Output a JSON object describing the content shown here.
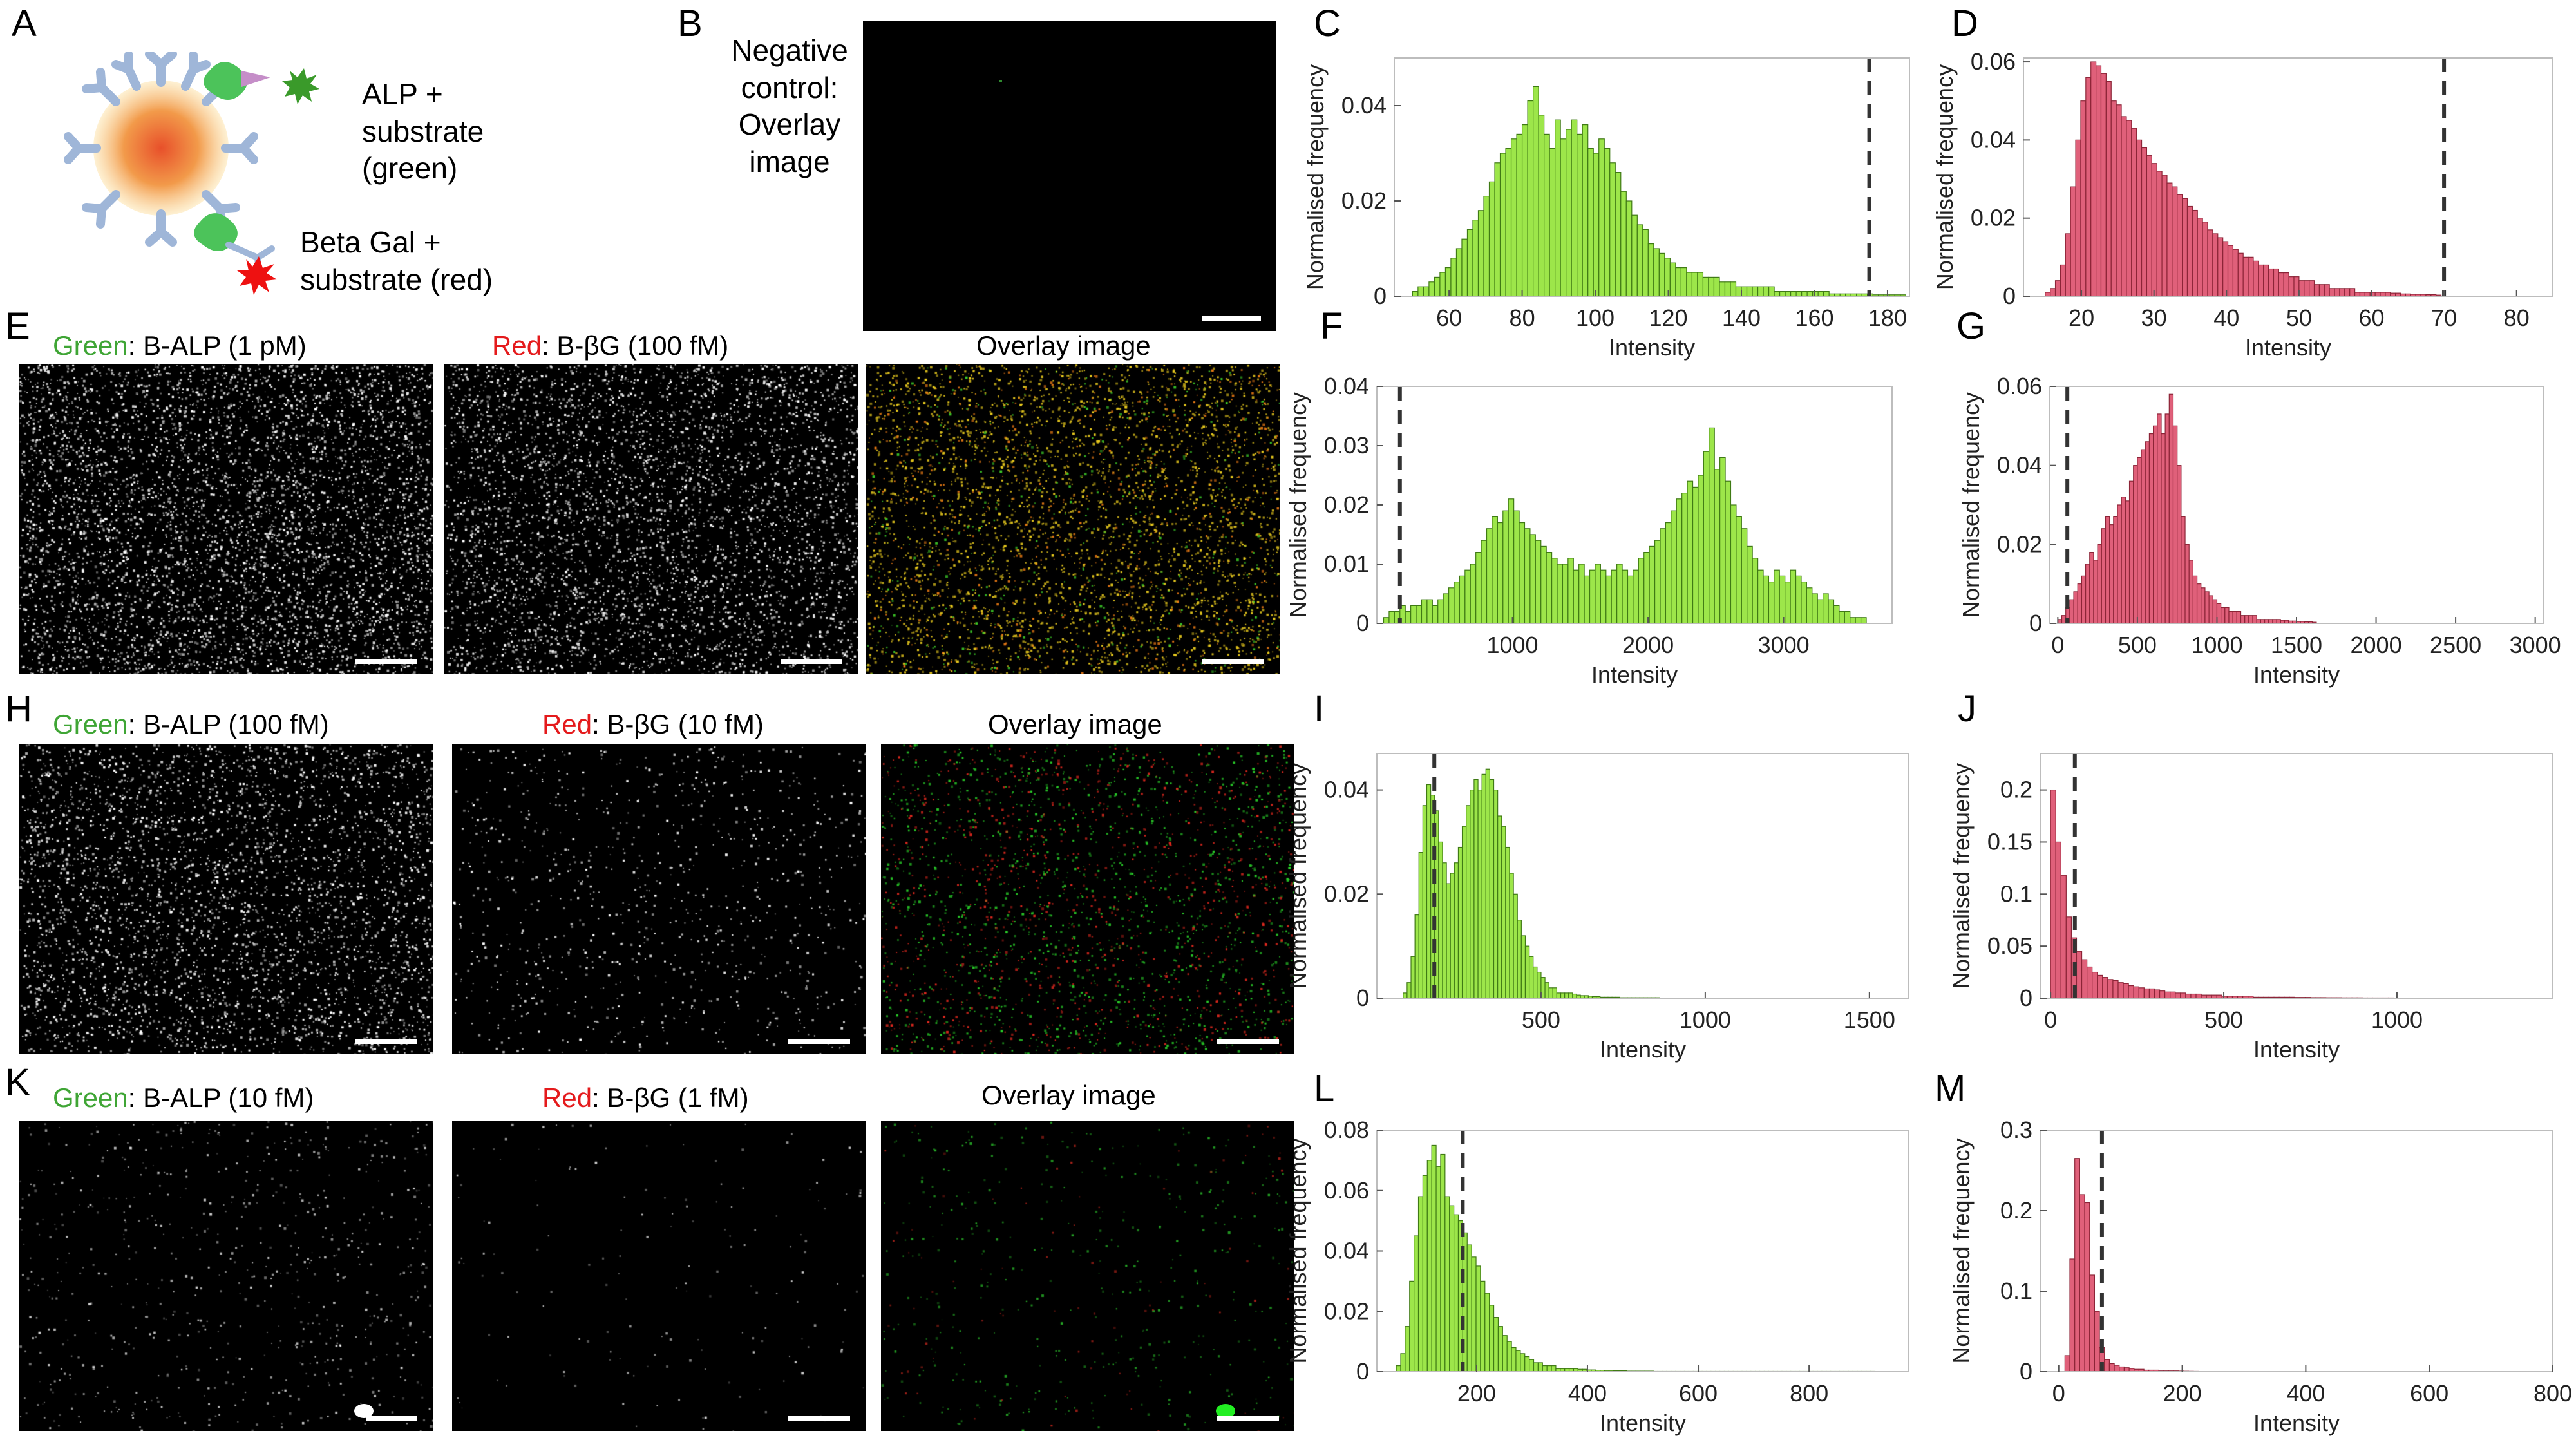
{
  "panel_labels": {
    "A": "A",
    "B": "B",
    "C": "C",
    "D": "D",
    "E": "E",
    "F": "F",
    "G": "G",
    "H": "H",
    "I": "I",
    "J": "J",
    "K": "K",
    "L": "L",
    "M": "M"
  },
  "colors": {
    "green_hist": "#9de64a",
    "green_edge": "#3f7a14",
    "red_hist": "#e0607a",
    "red_edge": "#8c2437",
    "label_green": "#3fa535",
    "label_red": "#e41a1c",
    "dashed": "#333333"
  },
  "panel_a": {
    "alp_text_line1": "ALP +",
    "alp_text_line2": "substrate",
    "alp_text_line3": "(green)",
    "bgal_text_line1": "Beta Gal +",
    "bgal_text_line2": "substrate (red)"
  },
  "panel_b": {
    "line1": "Negative",
    "line2": "control:",
    "line3": "Overlay",
    "line4": "image"
  },
  "row_e": {
    "green_word": "Green",
    "green_rest": ": B-ALP (1 pM)",
    "red_word": "Red",
    "red_rest": ": B-βG (100 fM)",
    "overlay": "Overlay image"
  },
  "row_h": {
    "green_word": "Green",
    "green_rest": ": B-ALP (100 fM)",
    "red_word": "Red",
    "red_rest": ": B-βG (10 fM)",
    "overlay": "Overlay image"
  },
  "row_k": {
    "green_word": "Green",
    "green_rest": ": B-ALP (10 fM)",
    "red_word": "Red",
    "red_rest": ": B-βG (1 fM)",
    "overlay": "Overlay image"
  },
  "chart_data": [
    {
      "id": "C",
      "type": "bar",
      "color": "green",
      "xlabel": "Intensity",
      "ylabel": "Normalised frequency",
      "xlim": [
        45,
        186
      ],
      "ylim": [
        0,
        0.05
      ],
      "xticks": [
        60,
        80,
        100,
        120,
        140,
        160,
        180
      ],
      "yticks": [
        0,
        0.02,
        0.04
      ],
      "threshold": 175,
      "bin_start": 50,
      "bin_width": 1.5,
      "values": [
        0.001,
        0.002,
        0.002,
        0.003,
        0.004,
        0.005,
        0.006,
        0.008,
        0.01,
        0.012,
        0.014,
        0.016,
        0.018,
        0.021,
        0.024,
        0.028,
        0.03,
        0.031,
        0.033,
        0.034,
        0.036,
        0.041,
        0.044,
        0.038,
        0.034,
        0.031,
        0.037,
        0.033,
        0.035,
        0.037,
        0.034,
        0.036,
        0.031,
        0.03,
        0.033,
        0.031,
        0.028,
        0.026,
        0.022,
        0.02,
        0.017,
        0.015,
        0.014,
        0.011,
        0.01,
        0.009,
        0.008,
        0.007,
        0.006,
        0.006,
        0.005,
        0.005,
        0.005,
        0.004,
        0.004,
        0.004,
        0.003,
        0.003,
        0.003,
        0.002,
        0.002,
        0.002,
        0.002,
        0.002,
        0.002,
        0.002,
        0.001,
        0.001,
        0.001,
        0.001,
        0.001,
        0.001,
        0.001,
        0.001,
        0.001,
        0.001,
        0.0005,
        0.0005,
        0.0005,
        0.0005,
        0.0005,
        0.0005,
        0.0005,
        0.0005,
        0.0003,
        0.0003,
        0.0003,
        0.0003,
        0.0003,
        0.0003
      ]
    },
    {
      "id": "D",
      "type": "bar",
      "color": "red",
      "xlabel": "Intensity",
      "ylabel": "Normalised frequency",
      "xlim": [
        12,
        85
      ],
      "ylim": [
        0,
        0.061
      ],
      "xticks": [
        20,
        30,
        40,
        50,
        60,
        70,
        80
      ],
      "yticks": [
        0,
        0.02,
        0.04,
        0.06
      ],
      "threshold": 70,
      "bin_start": 15,
      "bin_width": 0.7,
      "values": [
        0.001,
        0.002,
        0.004,
        0.008,
        0.016,
        0.028,
        0.04,
        0.05,
        0.056,
        0.06,
        0.059,
        0.057,
        0.055,
        0.05,
        0.049,
        0.046,
        0.045,
        0.043,
        0.04,
        0.038,
        0.036,
        0.034,
        0.032,
        0.031,
        0.029,
        0.028,
        0.026,
        0.025,
        0.023,
        0.022,
        0.02,
        0.019,
        0.017,
        0.016,
        0.015,
        0.014,
        0.013,
        0.012,
        0.011,
        0.01,
        0.01,
        0.009,
        0.008,
        0.008,
        0.007,
        0.007,
        0.006,
        0.006,
        0.005,
        0.005,
        0.004,
        0.004,
        0.004,
        0.003,
        0.003,
        0.003,
        0.002,
        0.002,
        0.002,
        0.002,
        0.002,
        0.001,
        0.001,
        0.001,
        0.001,
        0.001,
        0.001,
        0.001,
        0.0008,
        0.0008,
        0.0006,
        0.0006,
        0.0005,
        0.0005,
        0.0005,
        0.0004,
        0.0004,
        0.0003
      ]
    },
    {
      "id": "F",
      "type": "bar",
      "color": "green",
      "xlabel": "Intensity",
      "ylabel": "Normalised frequency",
      "xlim": [
        0,
        3800
      ],
      "ylim": [
        0,
        0.04
      ],
      "xticks": [
        1000,
        2000,
        3000
      ],
      "yticks": [
        0,
        0.01,
        0.02,
        0.03,
        0.04
      ],
      "threshold": 170,
      "bin_start": 50,
      "bin_width": 40,
      "values": [
        0.001,
        0.002,
        0.002,
        0.003,
        0.002,
        0.003,
        0.003,
        0.004,
        0.004,
        0.003,
        0.004,
        0.005,
        0.006,
        0.007,
        0.008,
        0.009,
        0.01,
        0.012,
        0.014,
        0.016,
        0.018,
        0.017,
        0.019,
        0.021,
        0.019,
        0.017,
        0.016,
        0.015,
        0.014,
        0.013,
        0.012,
        0.011,
        0.01,
        0.01,
        0.011,
        0.009,
        0.01,
        0.008,
        0.009,
        0.01,
        0.009,
        0.008,
        0.009,
        0.01,
        0.009,
        0.008,
        0.009,
        0.011,
        0.012,
        0.013,
        0.014,
        0.016,
        0.017,
        0.019,
        0.021,
        0.022,
        0.024,
        0.023,
        0.025,
        0.029,
        0.033,
        0.026,
        0.028,
        0.024,
        0.02,
        0.018,
        0.016,
        0.013,
        0.011,
        0.009,
        0.008,
        0.007,
        0.009,
        0.008,
        0.007,
        0.009,
        0.008,
        0.007,
        0.006,
        0.005,
        0.004,
        0.005,
        0.004,
        0.003,
        0.002,
        0.002,
        0.001,
        0.001,
        0.001
      ]
    },
    {
      "id": "G",
      "type": "bar",
      "color": "red",
      "xlabel": "Intensity",
      "ylabel": "Normalised frequency",
      "xlim": [
        -50,
        3050
      ],
      "ylim": [
        0,
        0.06
      ],
      "xticks": [
        0,
        500,
        1000,
        1500,
        2000,
        2500,
        3000
      ],
      "yticks": [
        0,
        0.02,
        0.04,
        0.06
      ],
      "threshold": 60,
      "bin_start": 0,
      "bin_width": 25,
      "values": [
        0.001,
        0.002,
        0.004,
        0.006,
        0.008,
        0.01,
        0.012,
        0.015,
        0.018,
        0.016,
        0.02,
        0.024,
        0.027,
        0.025,
        0.027,
        0.03,
        0.032,
        0.031,
        0.036,
        0.04,
        0.042,
        0.044,
        0.046,
        0.048,
        0.05,
        0.053,
        0.048,
        0.053,
        0.058,
        0.05,
        0.04,
        0.027,
        0.02,
        0.016,
        0.012,
        0.01,
        0.009,
        0.008,
        0.007,
        0.006,
        0.005,
        0.004,
        0.004,
        0.003,
        0.003,
        0.003,
        0.002,
        0.002,
        0.002,
        0.002,
        0.001,
        0.001,
        0.001,
        0.001,
        0.001,
        0.001,
        0.0008,
        0.0008,
        0.0006,
        0.0006,
        0.0005,
        0.0005,
        0.0004,
        0.0004,
        0.0003
      ]
    },
    {
      "id": "I",
      "type": "bar",
      "color": "green",
      "xlabel": "Intensity",
      "ylabel": "Normalised frequency",
      "xlim": [
        0,
        1620
      ],
      "ylim": [
        0,
        0.047
      ],
      "xticks": [
        500,
        1000,
        1500
      ],
      "yticks": [
        0,
        0.02,
        0.04
      ],
      "threshold": 175,
      "bin_start": 80,
      "bin_width": 12,
      "values": [
        0.001,
        0.003,
        0.008,
        0.016,
        0.028,
        0.037,
        0.041,
        0.039,
        0.036,
        0.03,
        0.026,
        0.022,
        0.024,
        0.026,
        0.029,
        0.033,
        0.037,
        0.04,
        0.042,
        0.04,
        0.043,
        0.044,
        0.042,
        0.04,
        0.035,
        0.033,
        0.029,
        0.024,
        0.02,
        0.015,
        0.012,
        0.01,
        0.008,
        0.006,
        0.005,
        0.004,
        0.003,
        0.002,
        0.002,
        0.001,
        0.001,
        0.001,
        0.001,
        0.0008,
        0.0006,
        0.0005,
        0.0005,
        0.0004,
        0.0003,
        0.0003,
        0.0002,
        0.0002,
        0.0002,
        0.0002,
        0.0002,
        0.0001,
        0.0001,
        0.0001,
        0.0001,
        0.0001,
        0.0001,
        0.0001,
        0.0001,
        0.0001,
        0.0001
      ]
    },
    {
      "id": "J",
      "type": "bar",
      "color": "red",
      "xlabel": "Intensity",
      "ylabel": "Normalised frequency",
      "xlim": [
        -30,
        1450
      ],
      "ylim": [
        0,
        0.235
      ],
      "xticks": [
        0,
        500,
        1000
      ],
      "yticks": [
        0,
        0.05,
        0.1,
        0.15,
        0.2
      ],
      "threshold": 70,
      "bin_start": 0,
      "bin_width": 15,
      "values": [
        0.2,
        0.15,
        0.118,
        0.078,
        0.058,
        0.045,
        0.037,
        0.03,
        0.025,
        0.022,
        0.02,
        0.018,
        0.017,
        0.015,
        0.014,
        0.012,
        0.011,
        0.01,
        0.009,
        0.009,
        0.008,
        0.007,
        0.006,
        0.006,
        0.005,
        0.005,
        0.004,
        0.004,
        0.004,
        0.003,
        0.003,
        0.003,
        0.003,
        0.002,
        0.002,
        0.002,
        0.002,
        0.002,
        0.002,
        0.001,
        0.001,
        0.001,
        0.001,
        0.001,
        0.001,
        0.001,
        0.001,
        0.0008,
        0.0008,
        0.0008,
        0.0006,
        0.0006,
        0.0006,
        0.0005,
        0.0005,
        0.0005,
        0.0004,
        0.0004,
        0.0004,
        0.0004,
        0.0003,
        0.0003,
        0.0003,
        0.0003,
        0.0003,
        0.0003,
        0.0002,
        0.0002,
        0.0002,
        0.0002,
        0.0002,
        0.0002,
        0.0002
      ]
    },
    {
      "id": "L",
      "type": "bar",
      "color": "green",
      "xlabel": "Intensity",
      "ylabel": "Normalised frequency",
      "xlim": [
        20,
        980
      ],
      "ylim": [
        0,
        0.08
      ],
      "xticks": [
        200,
        400,
        600,
        800
      ],
      "yticks": [
        0,
        0.02,
        0.04,
        0.06,
        0.08
      ],
      "threshold": 175,
      "bin_start": 55,
      "bin_width": 8,
      "values": [
        0.002,
        0.006,
        0.015,
        0.03,
        0.045,
        0.058,
        0.065,
        0.07,
        0.075,
        0.068,
        0.072,
        0.058,
        0.055,
        0.052,
        0.05,
        0.046,
        0.042,
        0.038,
        0.035,
        0.03,
        0.026,
        0.022,
        0.018,
        0.015,
        0.012,
        0.01,
        0.008,
        0.007,
        0.006,
        0.005,
        0.004,
        0.003,
        0.003,
        0.002,
        0.002,
        0.002,
        0.001,
        0.001,
        0.001,
        0.001,
        0.001,
        0.0008,
        0.0008,
        0.0006,
        0.0006,
        0.0005,
        0.0005,
        0.0004,
        0.0004,
        0.0003,
        0.0003,
        0.0003,
        0.0002,
        0.0002,
        0.0002,
        0.0002,
        0.0002,
        0.0002,
        0.0001,
        0.0001,
        0.0001,
        0.0001,
        0.0001,
        0.0001,
        0.0001,
        0.0001,
        0.0001,
        0.0001,
        0.0001,
        0.0001,
        0.0001,
        0.0001,
        0.0001,
        0.0001,
        0.0001,
        0.0001,
        0.0001,
        0.0001,
        0.0001,
        0.0001,
        0.0001,
        0.0001,
        0.0001,
        0.0001,
        0.0001,
        0.0001,
        0.0001,
        0.0001,
        0.0001,
        0.0001,
        0.0001,
        0.0001,
        0.0001,
        0.0001,
        0.0001,
        0.0001,
        0.0001,
        0.0001,
        0.0001,
        0.0001,
        0.0001,
        0.0001,
        0.0001,
        0.0001,
        0.0001,
        0.0001,
        0.0001,
        0.0001
      ]
    },
    {
      "id": "M",
      "type": "bar",
      "color": "red",
      "xlabel": "Intensity",
      "ylabel": "Normalised frequency",
      "xlim": [
        -30,
        800
      ],
      "ylim": [
        0,
        0.3
      ],
      "xticks": [
        0,
        200,
        400,
        600,
        800
      ],
      "yticks": [
        0,
        0.1,
        0.2,
        0.3
      ],
      "threshold": 70,
      "bin_start": 10,
      "bin_width": 8,
      "values": [
        0.02,
        0.14,
        0.265,
        0.22,
        0.21,
        0.12,
        0.075,
        0.03,
        0.015,
        0.01,
        0.008,
        0.006,
        0.005,
        0.004,
        0.003,
        0.003,
        0.002,
        0.002,
        0.002,
        0.001,
        0.001,
        0.001,
        0.001,
        0.0008,
        0.0006,
        0.0005,
        0.0004,
        0.0003,
        0.0003,
        0.0002
      ]
    }
  ]
}
